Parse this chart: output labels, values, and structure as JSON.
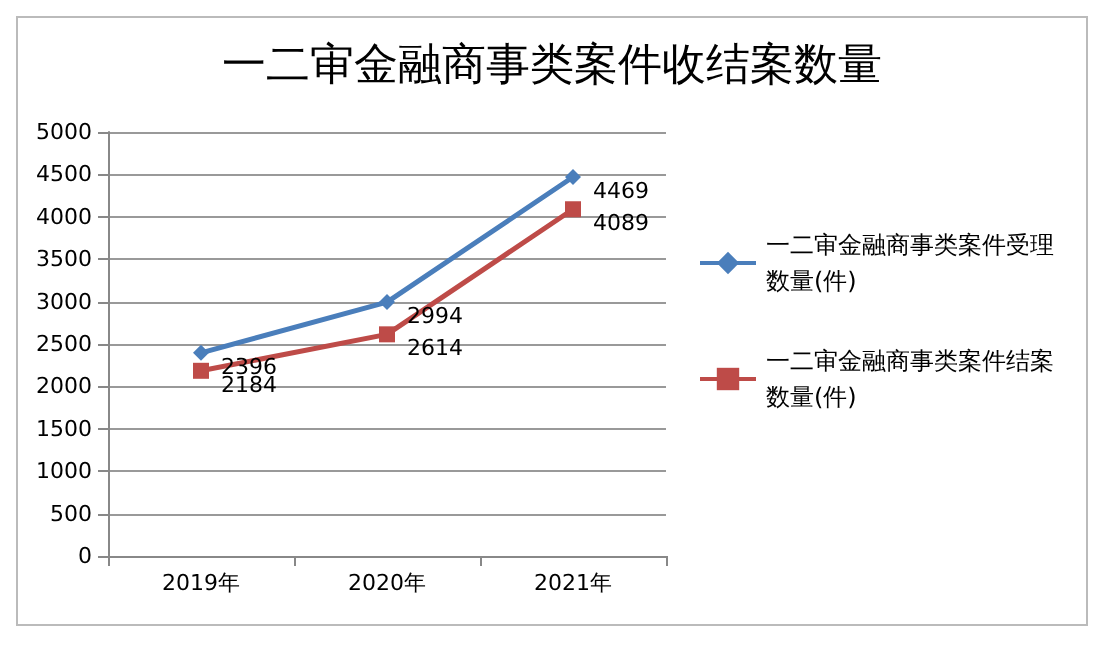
{
  "chart_data": {
    "type": "line",
    "title": "一二审金融商事类案件收结案数量",
    "categories": [
      "2019年",
      "2020年",
      "2021年"
    ],
    "series": [
      {
        "name": "一二审金融商事类案件受理数量(件)",
        "color": "#4a7ebb",
        "marker": "diamond",
        "values": [
          2396,
          2994,
          4469
        ]
      },
      {
        "name": "一二审金融商事类案件结案数量(件)",
        "color": "#be4b48",
        "marker": "square",
        "values": [
          2184,
          2614,
          4089
        ]
      }
    ],
    "ylim": [
      0,
      5000
    ],
    "yticks": [
      0,
      500,
      1000,
      1500,
      2000,
      2500,
      3000,
      3500,
      4000,
      4500,
      5000
    ],
    "grid": "y",
    "legend": "right",
    "data_labels": true
  }
}
